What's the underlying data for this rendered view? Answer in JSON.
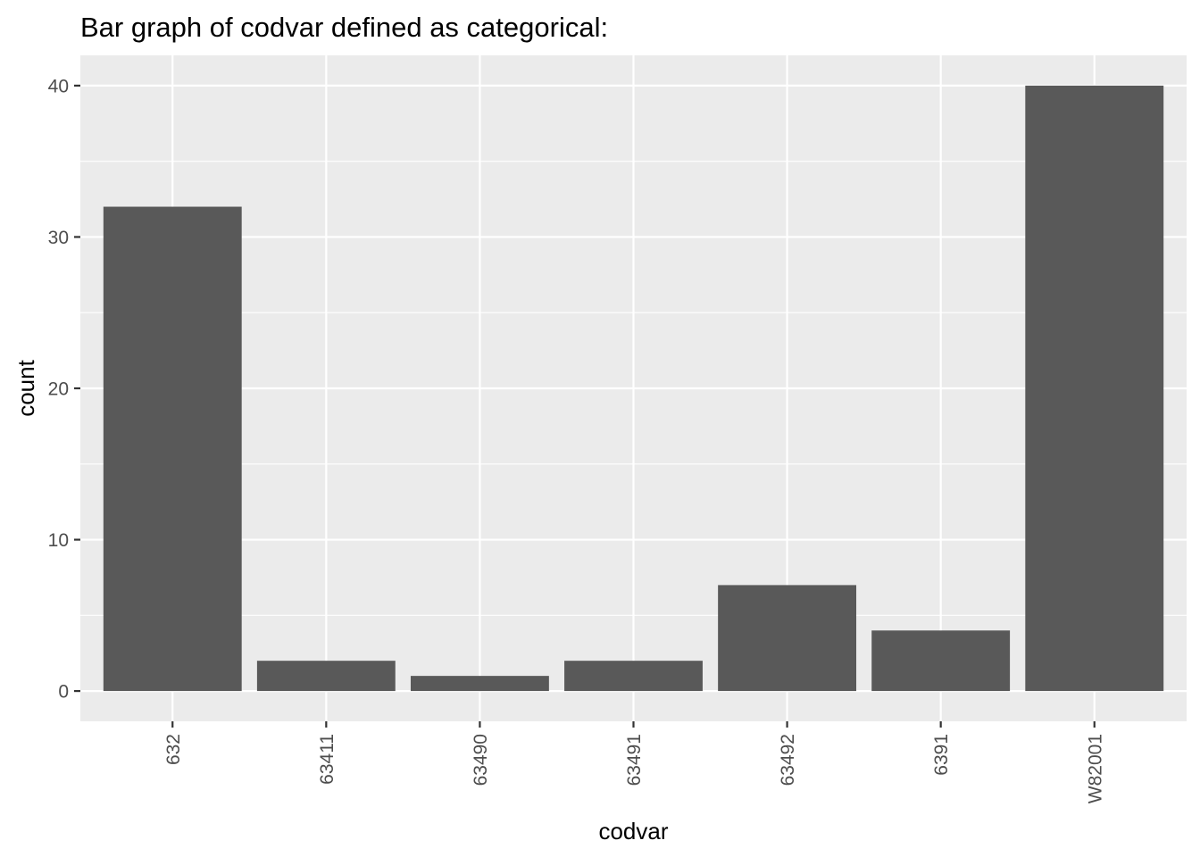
{
  "chart_data": {
    "type": "bar",
    "title": "Bar graph of codvar defined as categorical:",
    "xlabel": "codvar",
    "ylabel": "count",
    "categories": [
      "632",
      "63411",
      "63490",
      "63491",
      "63492",
      "6391",
      "W82001"
    ],
    "values": [
      32,
      2,
      1,
      2,
      7,
      4,
      40
    ],
    "ylim": [
      -2,
      42
    ],
    "yticks": [
      0,
      10,
      20,
      30,
      40
    ],
    "grid": true,
    "legend": "none",
    "colors": {
      "panel": "#ebebeb",
      "grid": "#ffffff",
      "bar": "#595959",
      "tick_text": "#4d4d4d",
      "text": "#000000"
    }
  }
}
